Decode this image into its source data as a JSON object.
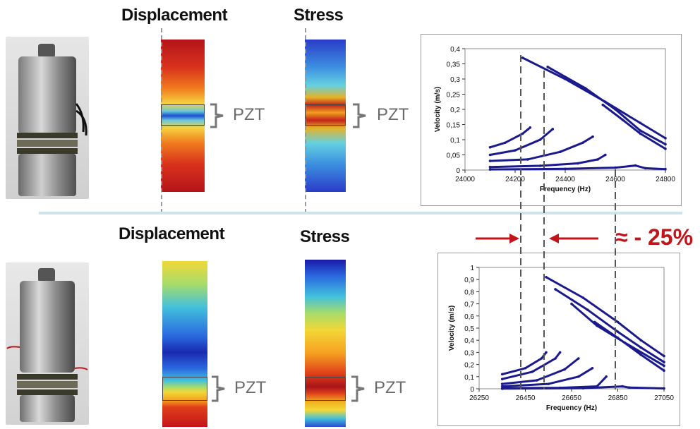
{
  "top": {
    "displacement_title": "Displacement",
    "stress_title": "Stress",
    "pzt_label_1": "PZT",
    "pzt_label_2": "PZT"
  },
  "bottom": {
    "displacement_title": "Displacement",
    "stress_title": "Stress",
    "pzt_label_1": "PZT",
    "pzt_label_2": "PZT"
  },
  "annotation": {
    "text": "≈ - 25%"
  },
  "colors": {
    "series": "#1a1a8c",
    "arrow": "#c0161b",
    "separator": "#cfe3ea"
  },
  "chart_data": [
    {
      "type": "scatter",
      "xlabel": "Frequency (Hz)",
      "ylabel": "Velocity (m/s)",
      "xlim": [
        24000,
        24800
      ],
      "ylim": [
        0,
        0.4
      ],
      "xticks": [
        24000,
        24200,
        24400,
        24600,
        24800
      ],
      "xtick_labels": [
        "24000",
        "24200",
        "24400",
        "24600",
        "24800"
      ],
      "yticks": [
        0,
        0.05,
        0.1,
        0.15,
        0.2,
        0.25,
        0.3,
        0.35,
        0.4
      ],
      "ytick_labels": [
        "0",
        "0,05",
        "0,1",
        "0,15",
        "0,2",
        "0,25",
        "0,3",
        "0,35",
        "0,4"
      ],
      "series": [
        {
          "values": [
            [
              24230,
              0.37
            ],
            [
              24400,
              0.3
            ],
            [
              24560,
              0.225
            ],
            [
              24700,
              0.155
            ],
            [
              24800,
              0.105
            ]
          ]
        },
        {
          "values": [
            [
              24330,
              0.34
            ],
            [
              24480,
              0.27
            ],
            [
              24600,
              0.2
            ],
            [
              24700,
              0.13
            ],
            [
              24800,
              0.085
            ]
          ]
        },
        {
          "values": [
            [
              24550,
              0.215
            ],
            [
              24630,
              0.165
            ],
            [
              24700,
              0.12
            ],
            [
              24800,
              0.07
            ]
          ]
        },
        {
          "values": [
            [
              24100,
              0.075
            ],
            [
              24160,
              0.09
            ],
            [
              24230,
              0.12
            ],
            [
              24260,
              0.14
            ]
          ]
        },
        {
          "values": [
            [
              24100,
              0.05
            ],
            [
              24200,
              0.065
            ],
            [
              24300,
              0.1
            ],
            [
              24350,
              0.135
            ]
          ]
        },
        {
          "values": [
            [
              24100,
              0.03
            ],
            [
              24250,
              0.035
            ],
            [
              24380,
              0.06
            ],
            [
              24470,
              0.09
            ],
            [
              24510,
              0.11
            ]
          ]
        },
        {
          "values": [
            [
              24100,
              0.01
            ],
            [
              24300,
              0.014
            ],
            [
              24450,
              0.022
            ],
            [
              24530,
              0.035
            ],
            [
              24560,
              0.05
            ]
          ]
        },
        {
          "values": [
            [
              24100,
              0.002
            ],
            [
              24400,
              0.004
            ],
            [
              24600,
              0.008
            ],
            [
              24680,
              0.015
            ],
            [
              24720,
              0.006
            ],
            [
              24800,
              0.003
            ]
          ]
        }
      ]
    },
    {
      "type": "scatter",
      "xlabel": "Frequency (Hz)",
      "ylabel": "Velocity (m/s)",
      "xlim": [
        26250,
        27050
      ],
      "ylim": [
        0,
        1
      ],
      "xticks": [
        26250,
        26450,
        26650,
        26850,
        27050
      ],
      "xtick_labels": [
        "26250",
        "26450",
        "26650",
        "26850",
        "27050"
      ],
      "yticks": [
        0,
        0.1,
        0.2,
        0.3,
        0.4,
        0.5,
        0.6,
        0.7,
        0.8,
        0.9,
        1
      ],
      "ytick_labels": [
        "0",
        "0,1",
        "0,2",
        "0,3",
        "0,4",
        "0,5",
        "0,6",
        "0,7",
        "0,8",
        "0,9",
        "1"
      ],
      "series": [
        {
          "values": [
            [
              26540,
              0.92
            ],
            [
              26700,
              0.75
            ],
            [
              26850,
              0.55
            ],
            [
              26950,
              0.4
            ],
            [
              27050,
              0.27
            ]
          ]
        },
        {
          "values": [
            [
              26580,
              0.82
            ],
            [
              26720,
              0.65
            ],
            [
              26850,
              0.47
            ],
            [
              26950,
              0.34
            ],
            [
              27050,
              0.22
            ]
          ]
        },
        {
          "values": [
            [
              26650,
              0.7
            ],
            [
              26760,
              0.52
            ],
            [
              26880,
              0.38
            ],
            [
              27050,
              0.19
            ]
          ]
        },
        {
          "values": [
            [
              26750,
              0.55
            ],
            [
              26850,
              0.42
            ],
            [
              26950,
              0.28
            ],
            [
              27050,
              0.15
            ]
          ]
        },
        {
          "values": [
            [
              26350,
              0.12
            ],
            [
              26450,
              0.17
            ],
            [
              26520,
              0.25
            ],
            [
              26540,
              0.3
            ]
          ]
        },
        {
          "values": [
            [
              26350,
              0.08
            ],
            [
              26480,
              0.14
            ],
            [
              26580,
              0.25
            ],
            [
              26600,
              0.3
            ]
          ]
        },
        {
          "values": [
            [
              26350,
              0.04
            ],
            [
              26500,
              0.07
            ],
            [
              26620,
              0.16
            ],
            [
              26680,
              0.25
            ]
          ]
        },
        {
          "values": [
            [
              26350,
              0.02
            ],
            [
              26550,
              0.04
            ],
            [
              26680,
              0.1
            ],
            [
              26740,
              0.17
            ]
          ]
        },
        {
          "values": [
            [
              26350,
              0.005
            ],
            [
              26600,
              0.008
            ],
            [
              26760,
              0.02
            ],
            [
              26800,
              0.1
            ]
          ]
        },
        {
          "values": [
            [
              26350,
              0.001
            ],
            [
              26700,
              0.005
            ],
            [
              26870,
              0.02
            ],
            [
              26900,
              0.01
            ],
            [
              27050,
              0.003
            ]
          ]
        }
      ]
    }
  ]
}
